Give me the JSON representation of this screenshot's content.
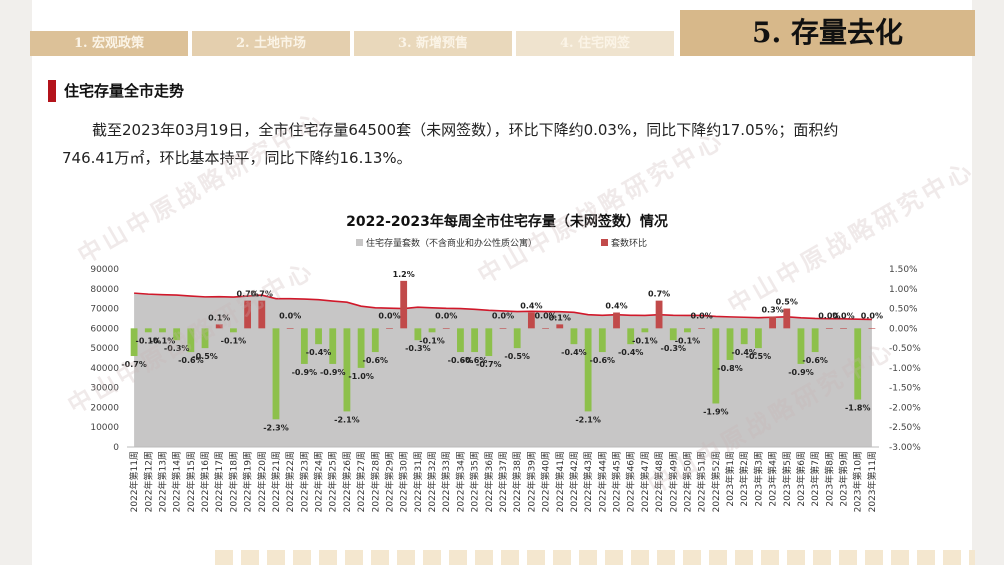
{
  "tabs": [
    {
      "label": "1. 宏观政策"
    },
    {
      "label": "2. 土地市场"
    },
    {
      "label": "3. 新增预售"
    },
    {
      "label": "4. 住宅网签"
    }
  ],
  "active_tab": "5. 存量去化",
  "section_title": "住宅存量全市走势",
  "paragraph_line1": "截至2023年03月19日，全市住宅存量64500套（未网签数），环比下降约0.03%，同比下降约17.05%；面积约",
  "paragraph_line2": "746.41万㎡，环比基本持平，同比下降约16.13%。",
  "watermark": "中山中原战略研究中心",
  "colors": {
    "area": "#c7c6c6",
    "line": "#d0182a",
    "bar_positive": "#c14a4a",
    "bar_negative": "#8dc04b"
  },
  "chart_data": {
    "type": "bar",
    "title": "2022-2023年每周全市住宅存量（未网签数）情况",
    "legend": {
      "area_label": "住宅存量套数（不含商业和办公性质公寓）",
      "bar_label": "套数环比",
      "placement": "top"
    },
    "categories": [
      "2022年第11周",
      "2022年第12周",
      "2022年第13周",
      "2022年第14周",
      "2022年第15周",
      "2022年第16周",
      "2022年第17周",
      "2022年第18周",
      "2022年第19周",
      "2022年第20周",
      "2022年第21周",
      "2022年第22周",
      "2022年第23周",
      "2022年第24周",
      "2022年第25周",
      "2022年第26周",
      "2022年第27周",
      "2022年第28周",
      "2022年第29周",
      "2022年第30周",
      "2022年第31周",
      "2022年第32周",
      "2022年第33周",
      "2022年第34周",
      "2022年第35周",
      "2022年第36周",
      "2022年第37周",
      "2022年第38周",
      "2022年第39周",
      "2022年第40周",
      "2022年第41周",
      "2022年第42周",
      "2022年第43周",
      "2022年第44周",
      "2022年第45周",
      "2022年第46周",
      "2022年第47周",
      "2022年第48周",
      "2022年第49周",
      "2022年第50周",
      "2022年第51周",
      "2022年第52周",
      "2023年第1周",
      "2023年第2周",
      "2023年第3周",
      "2023年第4周",
      "2023年第5周",
      "2023年第6周",
      "2023年第7周",
      "2023年第8周",
      "2023年第9周",
      "2023年第10周",
      "2023年第11周"
    ],
    "series": [
      {
        "name": "住宅存量套数（不含商业和办公性质公寓）",
        "chart": "area",
        "values": [
          77800,
          77300,
          77000,
          76800,
          76300,
          75900,
          76000,
          75800,
          76300,
          76800,
          75000,
          75000,
          74800,
          74500,
          73800,
          73200,
          71200,
          70400,
          70200,
          70000,
          70700,
          70400,
          70100,
          70000,
          69600,
          69100,
          68800,
          68500,
          68600,
          68500,
          68400,
          68100,
          66900,
          66600,
          66900,
          66600,
          66500,
          66900,
          66600,
          66500,
          66500,
          66000,
          65800,
          65600,
          65400,
          65600,
          65800,
          65300,
          65000,
          64900,
          64800,
          64600,
          64500
        ]
      },
      {
        "name": "套数环比",
        "chart": "bar",
        "values": [
          -0.7,
          -0.1,
          -0.1,
          -0.3,
          -0.6,
          -0.5,
          0.1,
          -0.1,
          0.7,
          0.7,
          -2.3,
          0.0,
          -0.9,
          -0.4,
          -0.9,
          -2.1,
          -1.0,
          -0.6,
          0.0,
          1.2,
          -0.3,
          -0.1,
          0.0,
          -0.6,
          -0.6,
          -0.7,
          0.0,
          -0.5,
          0.4,
          0.0,
          0.1,
          -0.4,
          -2.1,
          -0.6,
          0.4,
          -0.4,
          -0.1,
          0.7,
          -0.3,
          -0.1,
          0.0,
          -1.9,
          -0.8,
          -0.4,
          -0.5,
          0.3,
          0.5,
          -0.9,
          -0.6,
          0.0,
          0.0,
          -1.8,
          0.0
        ],
        "labels": [
          "-0.7%",
          "-0.1%",
          "-0.1%",
          "-0.3%",
          "-0.6%",
          "-0.5%",
          "0.1%",
          "-0.1%",
          "0.7%",
          "0.7%",
          "-2.3%",
          "0.0%",
          "-0.9%",
          "-0.4%",
          "-0.9%",
          "-2.1%",
          "-1.0%",
          "-0.6%",
          "0.0%",
          "1.2%",
          "-0.3%",
          "-0.1%",
          "0.0%",
          "-0.6%",
          "-0.6%",
          "-0.7%",
          "0.0%",
          "-0.5%",
          "0.4%",
          "0.0%",
          "0.1%",
          "-0.4%",
          "-2.1%",
          "-0.6%",
          "0.4%",
          "-0.4%",
          "-0.1%",
          "0.7%",
          "-0.3%",
          "-0.1%",
          "0.0%",
          "-1.9%",
          "-0.8%",
          "-0.4%",
          "-0.5%",
          "0.3%",
          "0.5%",
          "-0.9%",
          "-0.6%",
          "0.0%",
          "0.0%",
          "-1.8%",
          "0.0%"
        ]
      }
    ],
    "y_left": {
      "min": 0,
      "max": 90000,
      "ticks": [
        "0",
        "10000",
        "20000",
        "30000",
        "40000",
        "50000",
        "60000",
        "70000",
        "80000",
        "90000"
      ]
    },
    "y_right": {
      "min": -3.0,
      "max": 1.5,
      "ticks": [
        "-3.00%",
        "-2.50%",
        "-2.00%",
        "-1.50%",
        "-1.00%",
        "-0.50%",
        "0.00%",
        "0.50%",
        "1.00%",
        "1.50%"
      ]
    },
    "grid": false
  }
}
